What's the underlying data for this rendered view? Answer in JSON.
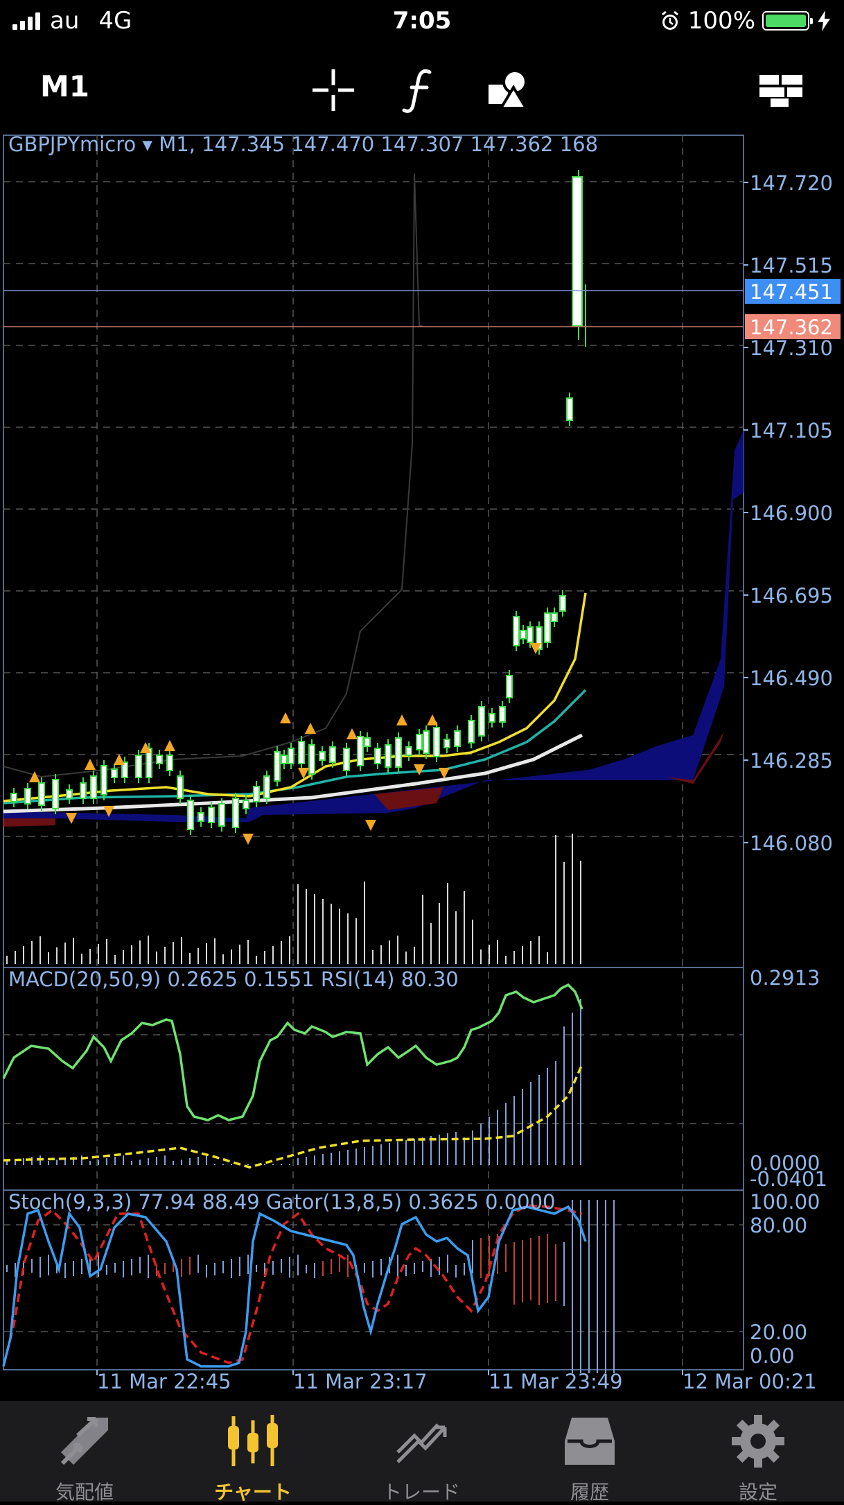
{
  "status_bar": {
    "carrier": "au",
    "network": "4G",
    "time": "7:05",
    "battery": "100%",
    "battery_color": "#4cd964"
  },
  "toolbar": {
    "timeframe": "M1",
    "icons": [
      "crosshair-icon",
      "function-icon",
      "objects-icon",
      "windows-icon"
    ]
  },
  "chart": {
    "header": "GBPJPYmicro ▾ M1, 147.345 147.470 147.307 147.362 168",
    "price_ticks": [
      "147.720",
      "147.515",
      "147.310",
      "147.105",
      "146.900",
      "146.695",
      "146.490",
      "146.285",
      "146.080"
    ],
    "ask_label": "147.451",
    "bid_label": "147.362",
    "ask_color": "#3d8ef5",
    "bid_color": "#f08a7a",
    "indicator1_header": "MACD(20,50,9) 0.2625 0.1551 RSI(14) 80.30",
    "indicator1_ticks": [
      "0.2913",
      "0.0000",
      "-0.0401"
    ],
    "indicator2_header": "Stoch(9,3,3) 77.94 88.49 Gator(13,8,5) 0.3625 0.0000",
    "indicator2_ticks": [
      "100.00",
      "80.00",
      "20.00",
      "0.00"
    ],
    "time_labels": [
      "11 Mar 22:45",
      "11 Mar 23:17",
      "11 Mar 23:49",
      "12 Mar 00:21"
    ],
    "axis_color": "#8fb5e8"
  },
  "tabs": [
    {
      "label": "気配値",
      "icon": "quotes-icon"
    },
    {
      "label": "チャート",
      "icon": "chart-icon",
      "active": true
    },
    {
      "label": "トレード",
      "icon": "trade-icon"
    },
    {
      "label": "履歴",
      "icon": "history-icon"
    },
    {
      "label": "設定",
      "icon": "settings-icon"
    }
  ]
}
